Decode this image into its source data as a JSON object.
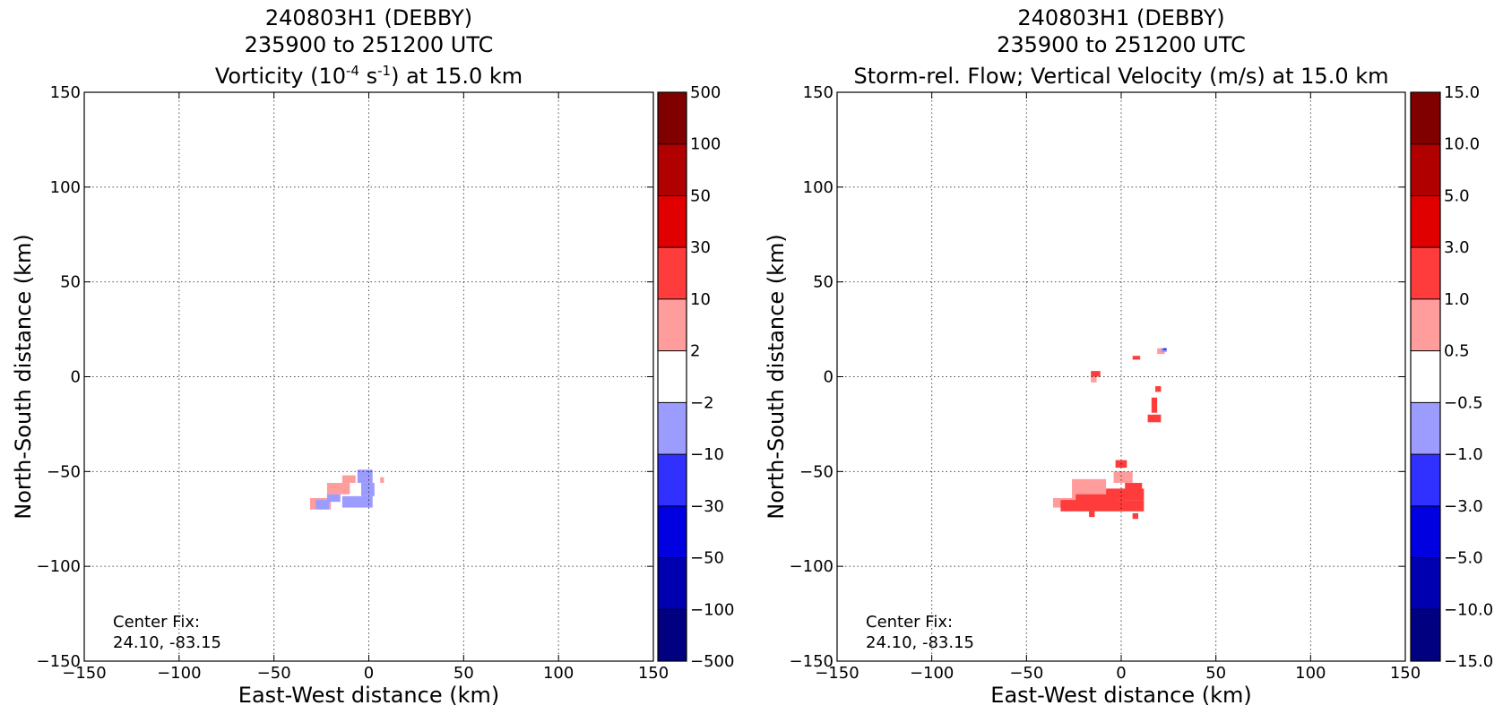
{
  "chart_data": [
    {
      "type": "heatmap",
      "title_lines": [
        "240803H1 (DEBBY)",
        "235900 to 251200 UTC"
      ],
      "title_field_pre": "Vorticity (10",
      "title_exp1": "-4",
      "title_mid": " s",
      "title_exp2": "-1",
      "title_post": ") at 15.0 km",
      "xlabel": "East-West distance (km)",
      "ylabel": "North-South distance (km)",
      "xlim": [
        -150,
        150
      ],
      "ylim": [
        -150,
        150
      ],
      "xticks": [
        -150,
        -100,
        -50,
        0,
        50,
        100,
        150
      ],
      "yticks": [
        -150,
        -100,
        -50,
        0,
        50,
        100,
        150
      ],
      "xtick_labels": [
        "−150",
        "−100",
        "−50",
        "0",
        "50",
        "100",
        "150"
      ],
      "ytick_labels": [
        "−150",
        "−100",
        "−50",
        "0",
        "50",
        "100",
        "150"
      ],
      "grid": true,
      "annotation": [
        "Center Fix:",
        "24.10, -83.15"
      ],
      "colorbar": {
        "levels": [
          "−500",
          "−100",
          "−50",
          "−30",
          "−10",
          "−2",
          "2",
          "10",
          "30",
          "50",
          "100",
          "500"
        ],
        "colors": [
          "#000080",
          "#0000b0",
          "#0000e0",
          "#3030ff",
          "#9c9cff",
          "#ffffff",
          "#ff9c9c",
          "#ff3c3c",
          "#e00000",
          "#b00000",
          "#800000"
        ]
      },
      "patches": [
        {
          "value": "2 to 10",
          "color": "#ff9c9c",
          "x": [
            -31,
            -20
          ],
          "y": [
            -70,
            -64
          ]
        },
        {
          "value": "2 to 10",
          "color": "#ff9c9c",
          "x": [
            -22,
            -10
          ],
          "y": [
            -62,
            -56
          ]
        },
        {
          "value": "2 to 10",
          "color": "#ff9c9c",
          "x": [
            -14,
            -7
          ],
          "y": [
            -56,
            -52
          ]
        },
        {
          "value": "2 to 10",
          "color": "#ff9c9c",
          "x": [
            6,
            8
          ],
          "y": [
            -56,
            -53
          ]
        },
        {
          "value": "-10 to -2",
          "color": "#9c9cff",
          "x": [
            -6,
            2
          ],
          "y": [
            -56,
            -49
          ]
        },
        {
          "value": "-10 to -2",
          "color": "#9c9cff",
          "x": [
            -4,
            3
          ],
          "y": [
            -63,
            -56
          ]
        },
        {
          "value": "-10 to -2",
          "color": "#9c9cff",
          "x": [
            -14,
            2
          ],
          "y": [
            -69,
            -63
          ]
        },
        {
          "value": "-10 to -2",
          "color": "#9c9cff",
          "x": [
            -28,
            -21
          ],
          "y": [
            -70,
            -65
          ]
        },
        {
          "value": "-10 to -2",
          "color": "#9c9cff",
          "x": [
            -22,
            -15
          ],
          "y": [
            -66,
            -62
          ]
        }
      ]
    },
    {
      "type": "heatmap",
      "title_lines": [
        "240803H1 (DEBBY)",
        "235900 to 251200 UTC"
      ],
      "title_field_pre": "Storm-rel. Flow; Vertical Velocity (m/s) at 15.0 km",
      "xlabel": "East-West distance (km)",
      "ylabel": "North-South distance (km)",
      "xlim": [
        -150,
        150
      ],
      "ylim": [
        -150,
        150
      ],
      "xticks": [
        -150,
        -100,
        -50,
        0,
        50,
        100,
        150
      ],
      "yticks": [
        -150,
        -100,
        -50,
        0,
        50,
        100,
        150
      ],
      "xtick_labels": [
        "−150",
        "−100",
        "−50",
        "0",
        "50",
        "100",
        "150"
      ],
      "ytick_labels": [
        "−150",
        "−100",
        "−50",
        "0",
        "50",
        "100",
        "150"
      ],
      "grid": true,
      "annotation": [
        "Center Fix:",
        "24.10, -83.15"
      ],
      "colorbar": {
        "levels": [
          "−15.0",
          "−10.0",
          "−5.0",
          "−3.0",
          "−1.0",
          "−0.5",
          "0.5",
          "1.0",
          "3.0",
          "5.0",
          "10.0",
          "15.0"
        ],
        "colors": [
          "#000080",
          "#0000b0",
          "#0000e0",
          "#3030ff",
          "#9c9cff",
          "#ffffff",
          "#ff9c9c",
          "#ff3c3c",
          "#e00000",
          "#b00000",
          "#800000"
        ]
      },
      "patches": [
        {
          "value": "0.5 to 1.0",
          "color": "#ff9c9c",
          "x": [
            -36,
            -14
          ],
          "y": [
            -69,
            -64
          ]
        },
        {
          "value": "0.5 to 1.0",
          "color": "#ff9c9c",
          "x": [
            -26,
            -8
          ],
          "y": [
            -64,
            -54
          ]
        },
        {
          "value": "0.5 to 1.0",
          "color": "#ff9c9c",
          "x": [
            -4,
            6
          ],
          "y": [
            -56,
            -50
          ]
        },
        {
          "value": "0.5 to 1.0",
          "color": "#ff9c9c",
          "x": [
            -16,
            -13
          ],
          "y": [
            -3,
            0
          ]
        },
        {
          "value": "0.5 to 1.0",
          "color": "#ff9c9c",
          "x": [
            19,
            23
          ],
          "y": [
            12,
            15
          ]
        },
        {
          "value": "1.0 to 3.0",
          "color": "#ff3c3c",
          "x": [
            -32,
            12
          ],
          "y": [
            -71,
            -65
          ]
        },
        {
          "value": "1.0 to 3.0",
          "color": "#ff3c3c",
          "x": [
            -24,
            -2
          ],
          "y": [
            -68,
            -62
          ]
        },
        {
          "value": "1.0 to 3.0",
          "color": "#ff3c3c",
          "x": [
            -8,
            12
          ],
          "y": [
            -65,
            -59
          ]
        },
        {
          "value": "1.0 to 3.0",
          "color": "#ff3c3c",
          "x": [
            2,
            11
          ],
          "y": [
            -60,
            -56
          ]
        },
        {
          "value": "1.0 to 3.0",
          "color": "#ff3c3c",
          "x": [
            -3,
            3
          ],
          "y": [
            -48,
            -44
          ]
        },
        {
          "value": "1.0 to 3.0",
          "color": "#ff3c3c",
          "x": [
            -16,
            -11
          ],
          "y": [
            0,
            3
          ]
        },
        {
          "value": "1.0 to 3.0",
          "color": "#ff3c3c",
          "x": [
            6,
            10
          ],
          "y": [
            9,
            11
          ]
        },
        {
          "value": "1.0 to 3.0",
          "color": "#ff3c3c",
          "x": [
            14,
            21
          ],
          "y": [
            -24,
            -20
          ]
        },
        {
          "value": "1.0 to 3.0",
          "color": "#ff3c3c",
          "x": [
            16,
            19
          ],
          "y": [
            -19,
            -11
          ]
        },
        {
          "value": "1.0 to 3.0",
          "color": "#ff3c3c",
          "x": [
            18,
            21
          ],
          "y": [
            -8,
            -5
          ]
        },
        {
          "value": "1.0 to 3.0",
          "color": "#ff3c3c",
          "x": [
            -17,
            -14
          ],
          "y": [
            -74,
            -70
          ]
        },
        {
          "value": "1.0 to 3.0",
          "color": "#ff3c3c",
          "x": [
            6,
            9
          ],
          "y": [
            -75,
            -72
          ]
        },
        {
          "value": "-1.0 to -0.5",
          "color": "#9c9cff",
          "x": [
            21,
            24
          ],
          "y": [
            13,
            15
          ]
        },
        {
          "value": "-3.0 to -1.0",
          "color": "#3030ff",
          "x": [
            22,
            24
          ],
          "y": [
            14,
            15
          ]
        }
      ]
    }
  ]
}
